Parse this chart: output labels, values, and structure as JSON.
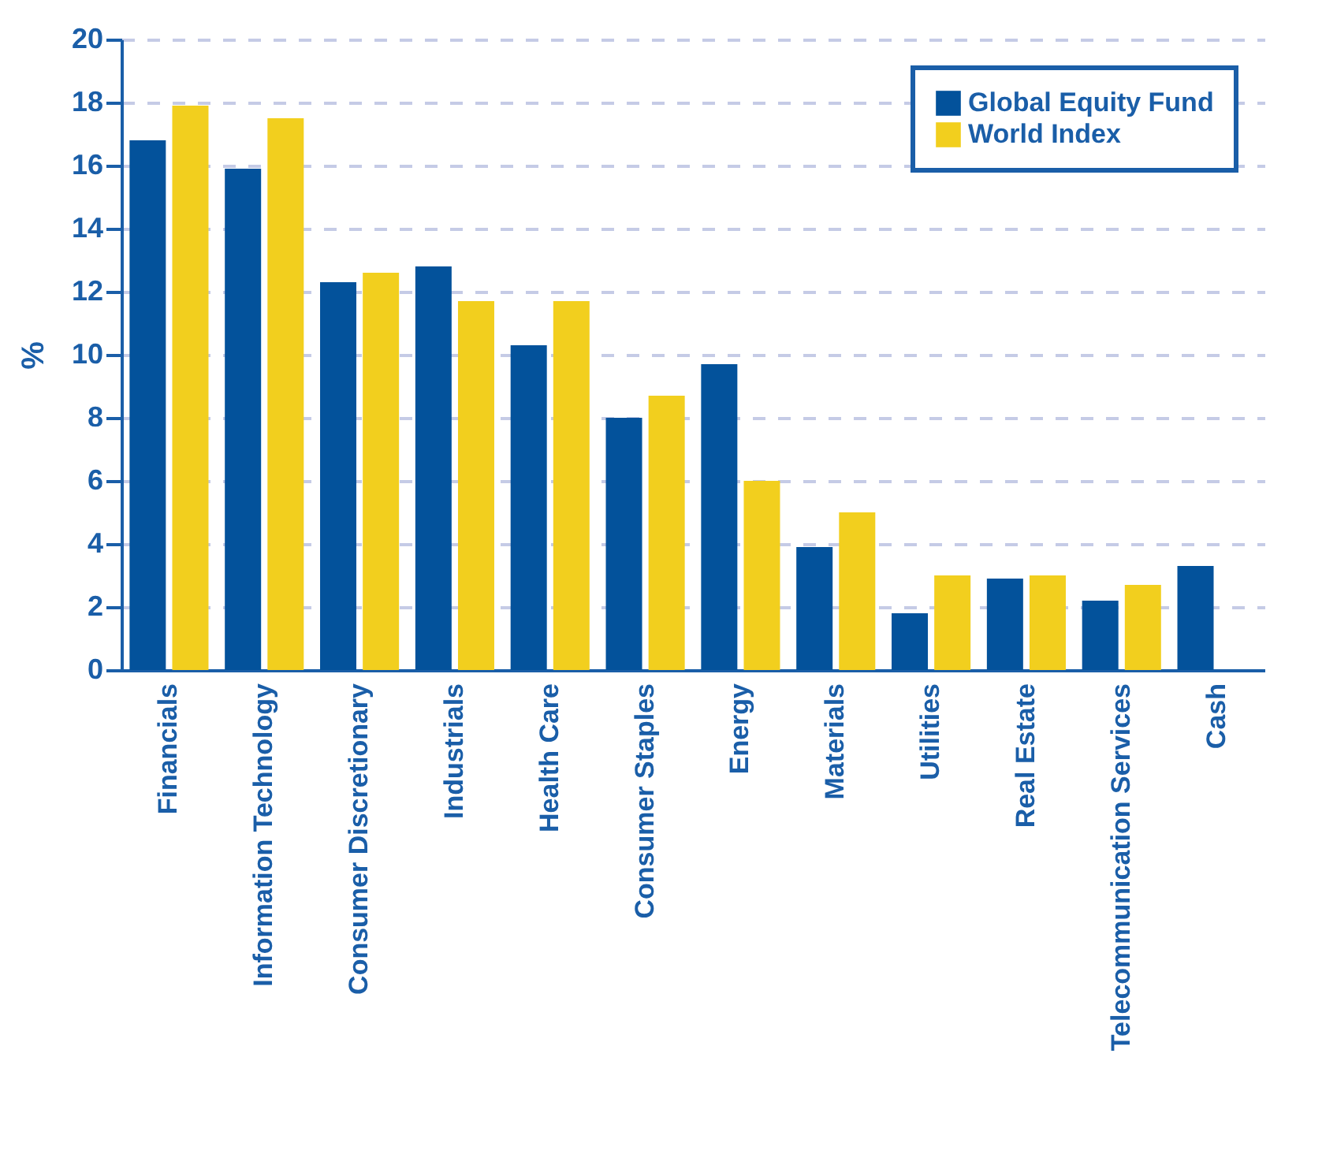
{
  "chart_data": {
    "type": "bar",
    "ylabel": "%",
    "categories": [
      "Financials",
      "Information Technology",
      "Consumer Discretionary",
      "Industrials",
      "Health Care",
      "Consumer Staples",
      "Energy",
      "Materials",
      "Utilities",
      "Real Estate",
      "Telecommunication Services",
      "Cash"
    ],
    "series": [
      {
        "name": "Global Equity Fund",
        "color": "#03529b",
        "values": [
          16.8,
          15.9,
          12.3,
          12.8,
          10.3,
          8.0,
          9.7,
          3.9,
          1.8,
          2.9,
          2.2,
          3.3
        ]
      },
      {
        "name": "World Index",
        "color": "#f2cf1e",
        "values": [
          17.9,
          17.5,
          12.6,
          11.7,
          11.7,
          8.7,
          6.0,
          5.0,
          3.0,
          3.0,
          2.7,
          null
        ]
      }
    ],
    "ylim": [
      0,
      20
    ],
    "yticks": [
      0,
      2,
      4,
      6,
      8,
      10,
      12,
      14,
      16,
      18,
      20
    ],
    "grid": "y",
    "legend": "top right"
  }
}
